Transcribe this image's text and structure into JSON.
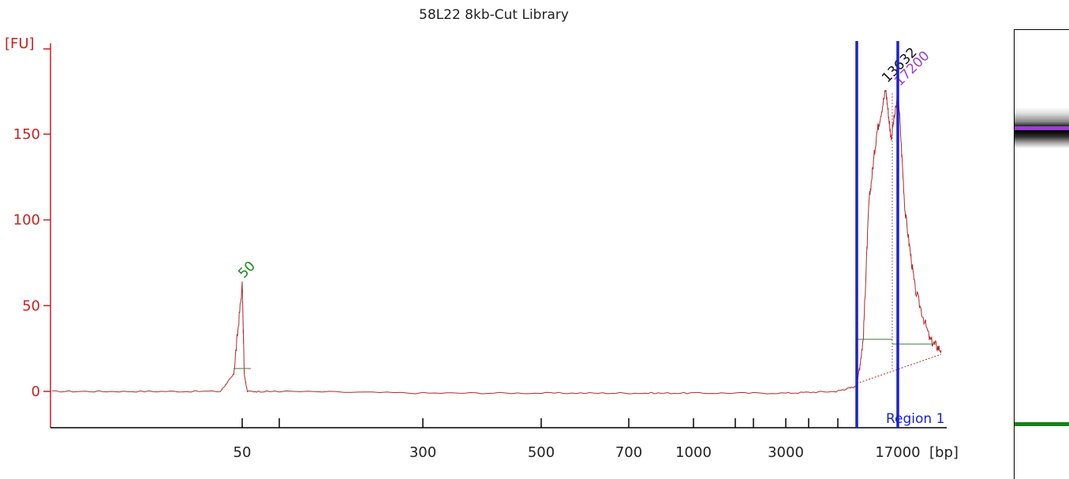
{
  "chart_data": {
    "type": "line",
    "title": "58L22 8kb-Cut Library",
    "ylabel": "[FU]",
    "xlabel": "[bp]",
    "ylim": [
      -20,
      205
    ],
    "yticks": [
      0,
      50,
      100,
      150
    ],
    "ytick_labels": [
      "0",
      "50",
      "100",
      "150"
    ],
    "xtick_labels": [
      "50",
      "300",
      "500",
      "700",
      "1000",
      "3000",
      "17000"
    ],
    "x_axis_scale": "nonlinear (electrophoresis size ladder)",
    "grid": false,
    "series": [
      {
        "color": "#b02828",
        "points": [
          {
            "bp": 20,
            "fu": 0
          },
          {
            "bp": 30,
            "fu": 0
          },
          {
            "bp": 45,
            "fu": 0
          },
          {
            "bp": 48,
            "fu": 10
          },
          {
            "bp": 50,
            "fu": 62
          },
          {
            "bp": 52,
            "fu": 10
          },
          {
            "bp": 55,
            "fu": 0
          },
          {
            "bp": 100,
            "fu": 0
          },
          {
            "bp": 300,
            "fu": -1
          },
          {
            "bp": 500,
            "fu": -1
          },
          {
            "bp": 700,
            "fu": -1
          },
          {
            "bp": 1000,
            "fu": -1
          },
          {
            "bp": 3000,
            "fu": -1
          },
          {
            "bp": 6000,
            "fu": 0
          },
          {
            "bp": 8000,
            "fu": 3
          },
          {
            "bp": 9000,
            "fu": 30
          },
          {
            "bp": 10000,
            "fu": 110
          },
          {
            "bp": 11500,
            "fu": 150
          },
          {
            "bp": 13630,
            "fu": 176
          },
          {
            "bp": 15000,
            "fu": 148
          },
          {
            "bp": 17200,
            "fu": 174
          },
          {
            "bp": 20000,
            "fu": 105
          },
          {
            "bp": 25000,
            "fu": 60
          },
          {
            "bp": 35000,
            "fu": 30
          },
          {
            "bp": 45000,
            "fu": 24
          }
        ]
      }
    ],
    "peaks": [
      {
        "label": "50",
        "bp": 50,
        "fu": 62,
        "color": "#1a8a1a"
      },
      {
        "label": "13632",
        "bp": 13632,
        "fu": 176,
        "color": "#111111"
      },
      {
        "label": "17200",
        "bp": 17200,
        "fu": 174,
        "color": "#9b3fd6"
      }
    ],
    "region": {
      "label": "Region 1",
      "color": "#1a22cc"
    }
  },
  "gel": {
    "band_color": "#000000",
    "upper_marker_color": "#9b3fd6",
    "lower_marker_color": "#168016"
  }
}
